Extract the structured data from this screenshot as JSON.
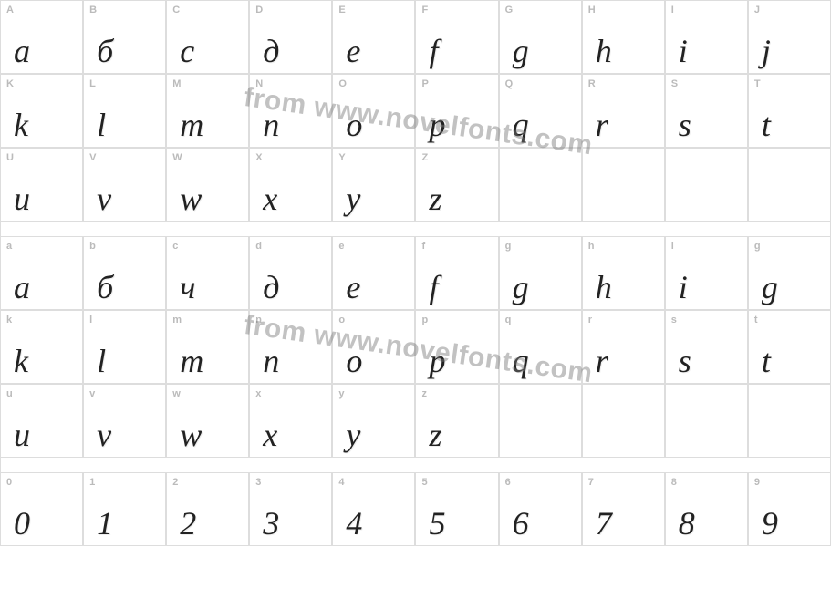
{
  "watermark_text": "from www.novelfonts.com",
  "colors": {
    "background": "#ffffff",
    "cell_border": "#dddddd",
    "label": "#bbbbbb",
    "glyph": "#222222",
    "watermark": "rgba(120,120,120,0.45)"
  },
  "typography": {
    "label_fontsize": 11,
    "glyph_fontsize": 36,
    "watermark_fontsize": 30
  },
  "sections": [
    {
      "name": "uppercase",
      "rows": [
        [
          {
            "label": "A",
            "glyph": "a"
          },
          {
            "label": "B",
            "glyph": "б"
          },
          {
            "label": "C",
            "glyph": "c"
          },
          {
            "label": "D",
            "glyph": "д"
          },
          {
            "label": "E",
            "glyph": "e"
          },
          {
            "label": "F",
            "glyph": "f"
          },
          {
            "label": "G",
            "glyph": "g"
          },
          {
            "label": "H",
            "glyph": "h"
          },
          {
            "label": "I",
            "glyph": "i"
          },
          {
            "label": "J",
            "glyph": "j"
          }
        ],
        [
          {
            "label": "K",
            "glyph": "k"
          },
          {
            "label": "L",
            "glyph": "l"
          },
          {
            "label": "M",
            "glyph": "m"
          },
          {
            "label": "N",
            "glyph": "n"
          },
          {
            "label": "O",
            "glyph": "o"
          },
          {
            "label": "P",
            "glyph": "p"
          },
          {
            "label": "Q",
            "glyph": "q"
          },
          {
            "label": "R",
            "glyph": "r"
          },
          {
            "label": "S",
            "glyph": "s"
          },
          {
            "label": "T",
            "glyph": "t"
          }
        ],
        [
          {
            "label": "U",
            "glyph": "u"
          },
          {
            "label": "V",
            "glyph": "v"
          },
          {
            "label": "W",
            "glyph": "w"
          },
          {
            "label": "X",
            "glyph": "x"
          },
          {
            "label": "Y",
            "glyph": "y"
          },
          {
            "label": "Z",
            "glyph": "z"
          },
          {
            "label": "",
            "glyph": ""
          },
          {
            "label": "",
            "glyph": ""
          },
          {
            "label": "",
            "glyph": ""
          },
          {
            "label": "",
            "glyph": ""
          }
        ]
      ]
    },
    {
      "name": "lowercase",
      "rows": [
        [
          {
            "label": "a",
            "glyph": "a"
          },
          {
            "label": "b",
            "glyph": "б"
          },
          {
            "label": "c",
            "glyph": "ч"
          },
          {
            "label": "d",
            "glyph": "д"
          },
          {
            "label": "e",
            "glyph": "e"
          },
          {
            "label": "f",
            "glyph": "f"
          },
          {
            "label": "g",
            "glyph": "g"
          },
          {
            "label": "h",
            "glyph": "h"
          },
          {
            "label": "i",
            "glyph": "i"
          },
          {
            "label": "g",
            "glyph": "g"
          }
        ],
        [
          {
            "label": "k",
            "glyph": "k"
          },
          {
            "label": "l",
            "glyph": "l"
          },
          {
            "label": "m",
            "glyph": "m"
          },
          {
            "label": "n",
            "glyph": "n"
          },
          {
            "label": "o",
            "glyph": "o"
          },
          {
            "label": "p",
            "glyph": "p"
          },
          {
            "label": "q",
            "glyph": "q"
          },
          {
            "label": "r",
            "glyph": "r"
          },
          {
            "label": "s",
            "glyph": "s"
          },
          {
            "label": "t",
            "glyph": "t"
          }
        ],
        [
          {
            "label": "u",
            "glyph": "u"
          },
          {
            "label": "v",
            "glyph": "v"
          },
          {
            "label": "w",
            "glyph": "w"
          },
          {
            "label": "x",
            "glyph": "x"
          },
          {
            "label": "y",
            "glyph": "y"
          },
          {
            "label": "z",
            "glyph": "z"
          },
          {
            "label": "",
            "glyph": ""
          },
          {
            "label": "",
            "glyph": ""
          },
          {
            "label": "",
            "glyph": ""
          },
          {
            "label": "",
            "glyph": ""
          }
        ]
      ]
    },
    {
      "name": "digits",
      "rows": [
        [
          {
            "label": "0",
            "glyph": "0"
          },
          {
            "label": "1",
            "glyph": "1"
          },
          {
            "label": "2",
            "glyph": "2"
          },
          {
            "label": "3",
            "glyph": "3"
          },
          {
            "label": "4",
            "glyph": "4"
          },
          {
            "label": "5",
            "glyph": "5"
          },
          {
            "label": "6",
            "glyph": "6"
          },
          {
            "label": "7",
            "glyph": "7"
          },
          {
            "label": "8",
            "glyph": "8"
          },
          {
            "label": "9",
            "glyph": "9"
          }
        ]
      ]
    }
  ]
}
